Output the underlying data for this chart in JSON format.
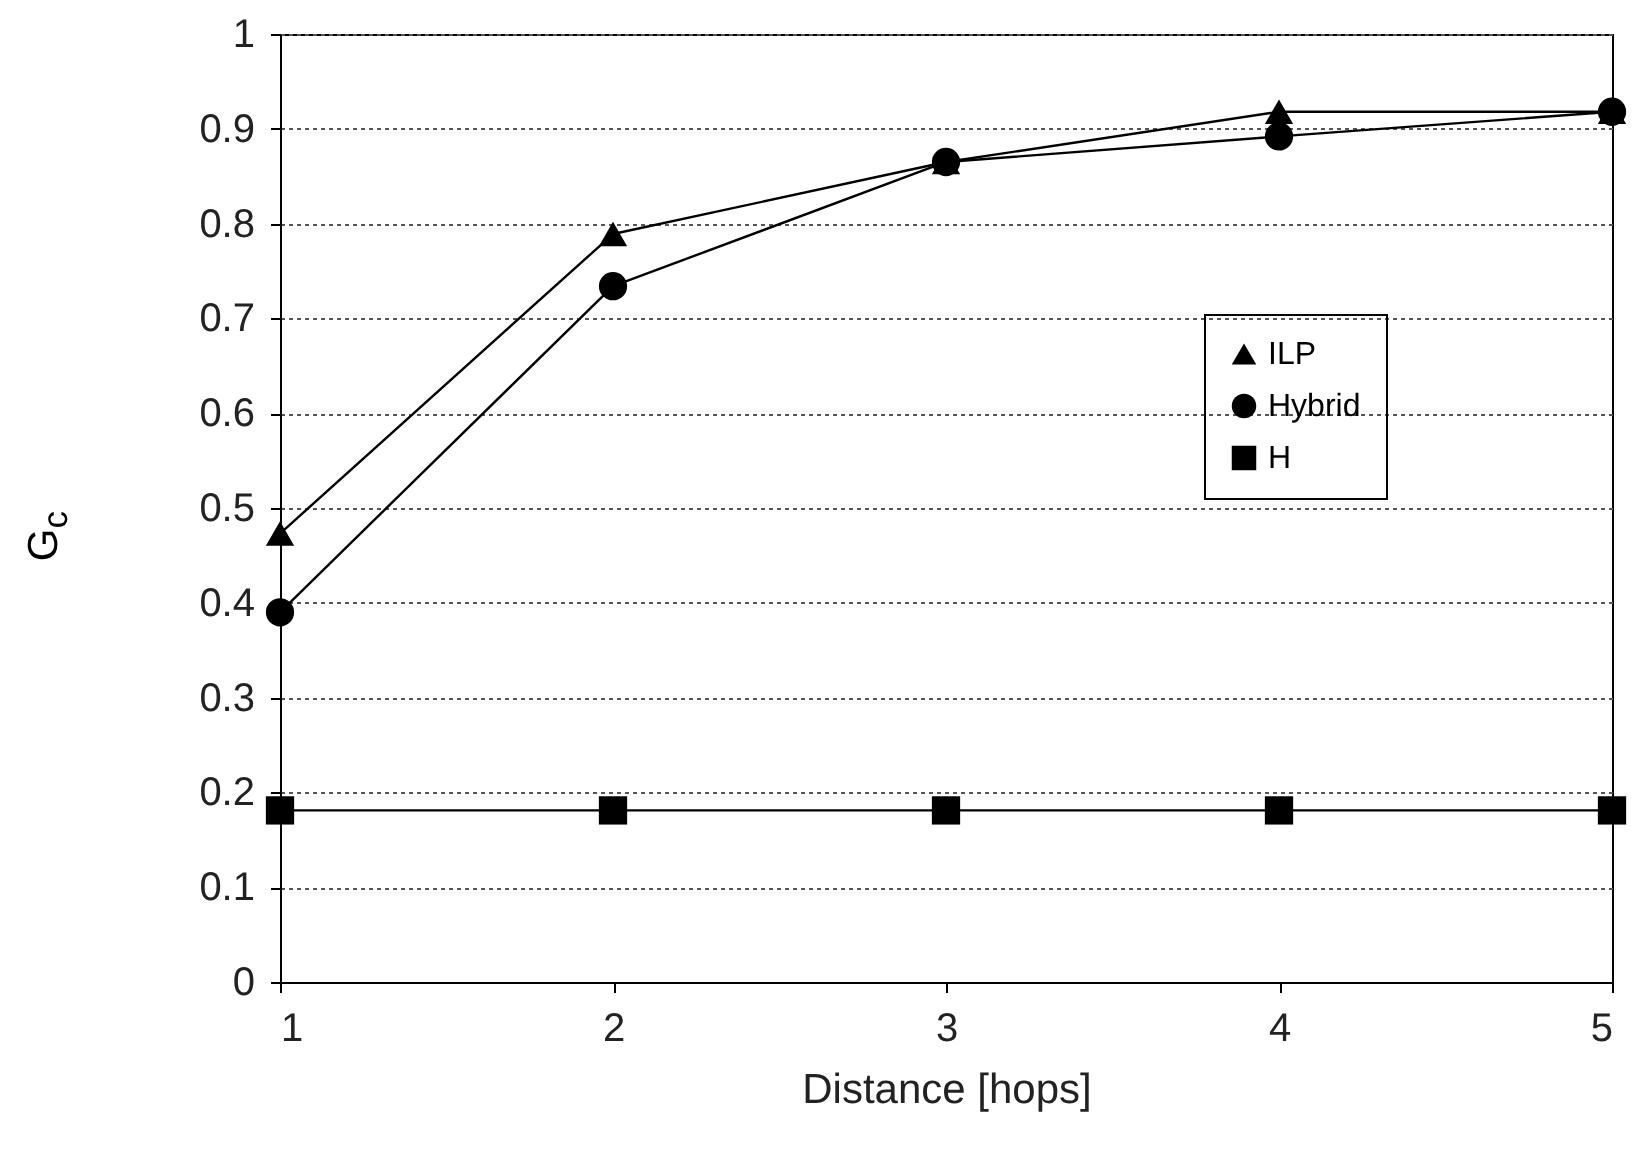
{
  "chart_data": {
    "type": "line",
    "xlabel": "Distance [hops]",
    "ylabel": "G$_{c}$",
    "x": [
      1,
      2,
      3,
      4,
      5
    ],
    "xlim": [
      1,
      5
    ],
    "xticks": [
      1,
      2,
      3,
      4,
      5
    ],
    "ylim": [
      0,
      1
    ],
    "yticks": [
      0,
      0.1,
      0.2,
      0.3,
      0.4,
      0.5,
      0.6,
      0.7,
      0.8,
      0.9,
      1
    ],
    "grid": "y",
    "legend": "right",
    "line_style": "solid",
    "series": [
      {
        "name": "ILP",
        "color": "#000000",
        "marker": "triangle",
        "values": [
          0.473,
          0.789,
          0.865,
          0.918,
          0.918
        ]
      },
      {
        "name": "Hybrid",
        "color": "#000000",
        "marker": "circle",
        "values": [
          0.39,
          0.734,
          0.865,
          0.892,
          0.918
        ]
      },
      {
        "name": "H",
        "color": "#000000",
        "marker": "square",
        "values": [
          0.181,
          0.181,
          0.181,
          0.181,
          0.181
        ]
      }
    ]
  }
}
